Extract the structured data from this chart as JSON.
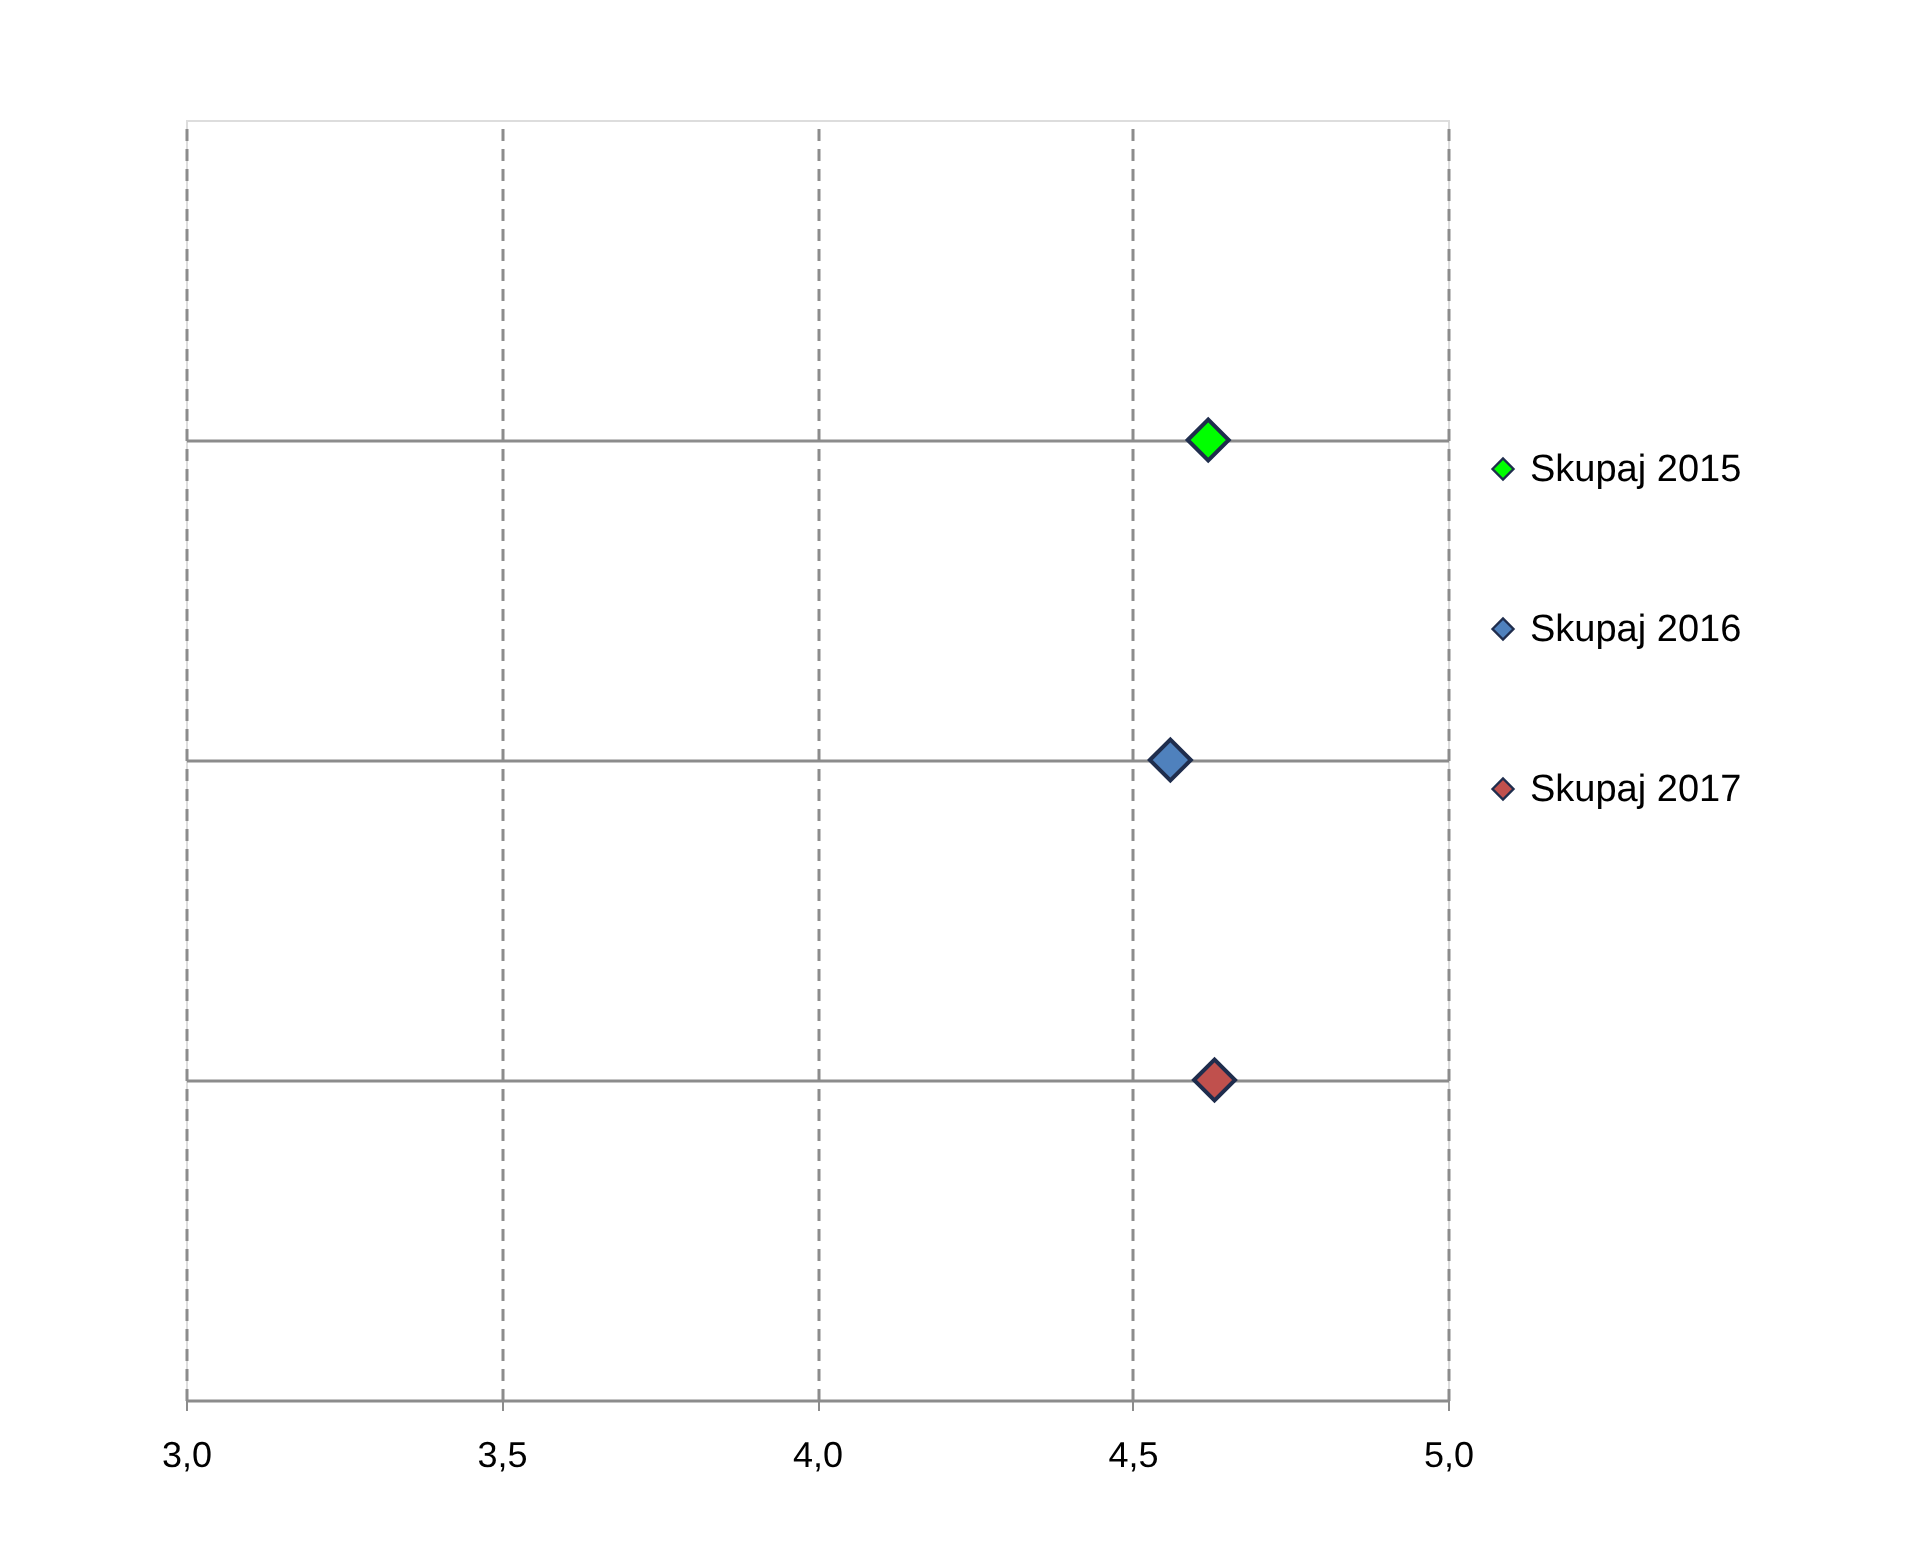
{
  "chart_data": {
    "type": "scatter",
    "orientation": "horizontal",
    "marker": "diamond",
    "grid": true,
    "legend": "right",
    "tick_labels": "x",
    "categories": [
      null,
      null,
      null
    ],
    "xlim": [
      3.0,
      5.0
    ],
    "xticks": [
      {
        "value": 3.0,
        "label": "3,0"
      },
      {
        "value": 3.5,
        "label": "3,5"
      },
      {
        "value": 4.0,
        "label": "4,0"
      },
      {
        "value": 4.5,
        "label": "4,5"
      },
      {
        "value": 5.0,
        "label": "5,0"
      }
    ],
    "series": [
      {
        "name": "Skupaj 2015",
        "color": "#00ff00",
        "values": [
          4.62,
          null,
          null
        ]
      },
      {
        "name": "Skupaj 2016",
        "color": "#4f81bd",
        "values": [
          null,
          4.56,
          null
        ]
      },
      {
        "name": "Skupaj 2017",
        "color": "#c0504d",
        "values": [
          null,
          null,
          4.63
        ]
      }
    ]
  }
}
